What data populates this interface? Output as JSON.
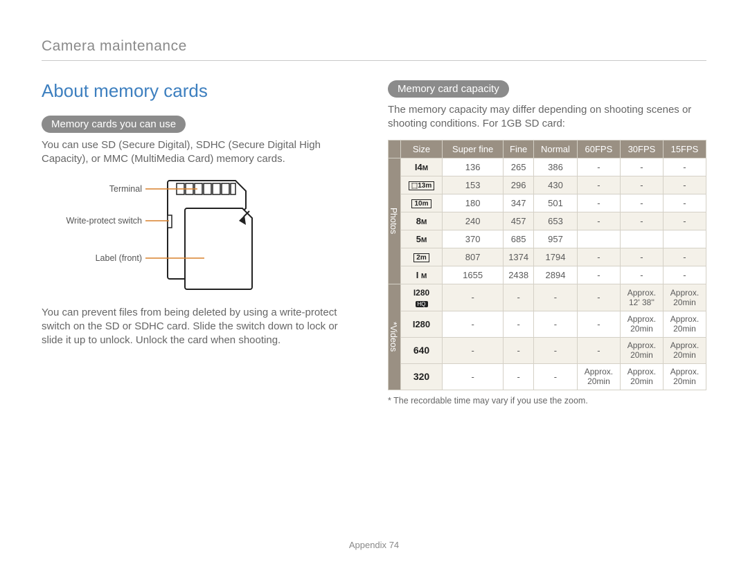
{
  "header": {
    "section": "Camera maintenance"
  },
  "left": {
    "title": "About memory cards",
    "p1_label": "Memory cards you can use",
    "p1_text": "You can use SD (Secure Digital), SDHC (Secure Digital High Capacity), or MMC (MultiMedia Card) memory cards.",
    "diagram": {
      "terminal": "Terminal",
      "switch": "Write-protect switch",
      "label_front": "Label (front)"
    },
    "p2_text": "You can prevent files from being deleted by using a write-protect switch on the SD or SDHC card. Slide the switch down to lock or slide it up to unlock. Unlock the card when shooting."
  },
  "right": {
    "p1_label": "Memory card capacity",
    "p1_text": "The memory capacity may differ depending on shooting scenes or shooting conditions. For 1GB SD card:",
    "table": {
      "headers": [
        "Size",
        "Super fine",
        "Fine",
        "Normal",
        "60FPS",
        "30FPS",
        "15FPS"
      ],
      "photos_label": "Photos",
      "videos_label": "* Videos",
      "photo_rows": [
        {
          "size": "14m",
          "cells": [
            "136",
            "265",
            "386",
            "-",
            "-",
            "-"
          ],
          "alt": false
        },
        {
          "size": "13m_box",
          "cells": [
            "153",
            "296",
            "430",
            "-",
            "-",
            "-"
          ],
          "alt": true
        },
        {
          "size": "10m_box",
          "cells": [
            "180",
            "347",
            "501",
            "-",
            "-",
            "-"
          ],
          "alt": false
        },
        {
          "size": "8m",
          "cells": [
            "240",
            "457",
            "653",
            "-",
            "-",
            "-"
          ],
          "alt": true
        },
        {
          "size": "5m",
          "cells": [
            "370",
            "685",
            "957",
            "",
            "",
            ""
          ],
          "alt": false
        },
        {
          "size": "2m_box",
          "cells": [
            "807",
            "1374",
            "1794",
            "-",
            "-",
            "-"
          ],
          "alt": true
        },
        {
          "size": "1m",
          "cells": [
            "1655",
            "2438",
            "2894",
            "-",
            "-",
            "-"
          ],
          "alt": false
        }
      ],
      "video_rows": [
        {
          "size": "1280hq",
          "cells": [
            "-",
            "-",
            "-",
            "-",
            "Approx. 12' 38''",
            "Approx. 20min"
          ],
          "alt": true
        },
        {
          "size": "1280",
          "cells": [
            "-",
            "-",
            "-",
            "-",
            "Approx. 20min",
            "Approx. 20min"
          ],
          "alt": false
        },
        {
          "size": "640",
          "cells": [
            "-",
            "-",
            "-",
            "-",
            "Approx. 20min",
            "Approx. 20min"
          ],
          "alt": true
        },
        {
          "size": "320",
          "cells": [
            "-",
            "-",
            "-",
            "Approx. 20min",
            "Approx. 20min",
            "Approx. 20min"
          ],
          "alt": false
        }
      ]
    },
    "footnote": "* The recordable time may vary if you use the zoom."
  },
  "footer": {
    "appendix": "Appendix",
    "page": "74"
  },
  "colors": {
    "heading_blue": "#3d7fbf",
    "pill_gray": "#8b8b8b",
    "table_header": "#9a9083",
    "table_alt": "#f4f1e9",
    "table_border": "#d4d0c6"
  }
}
